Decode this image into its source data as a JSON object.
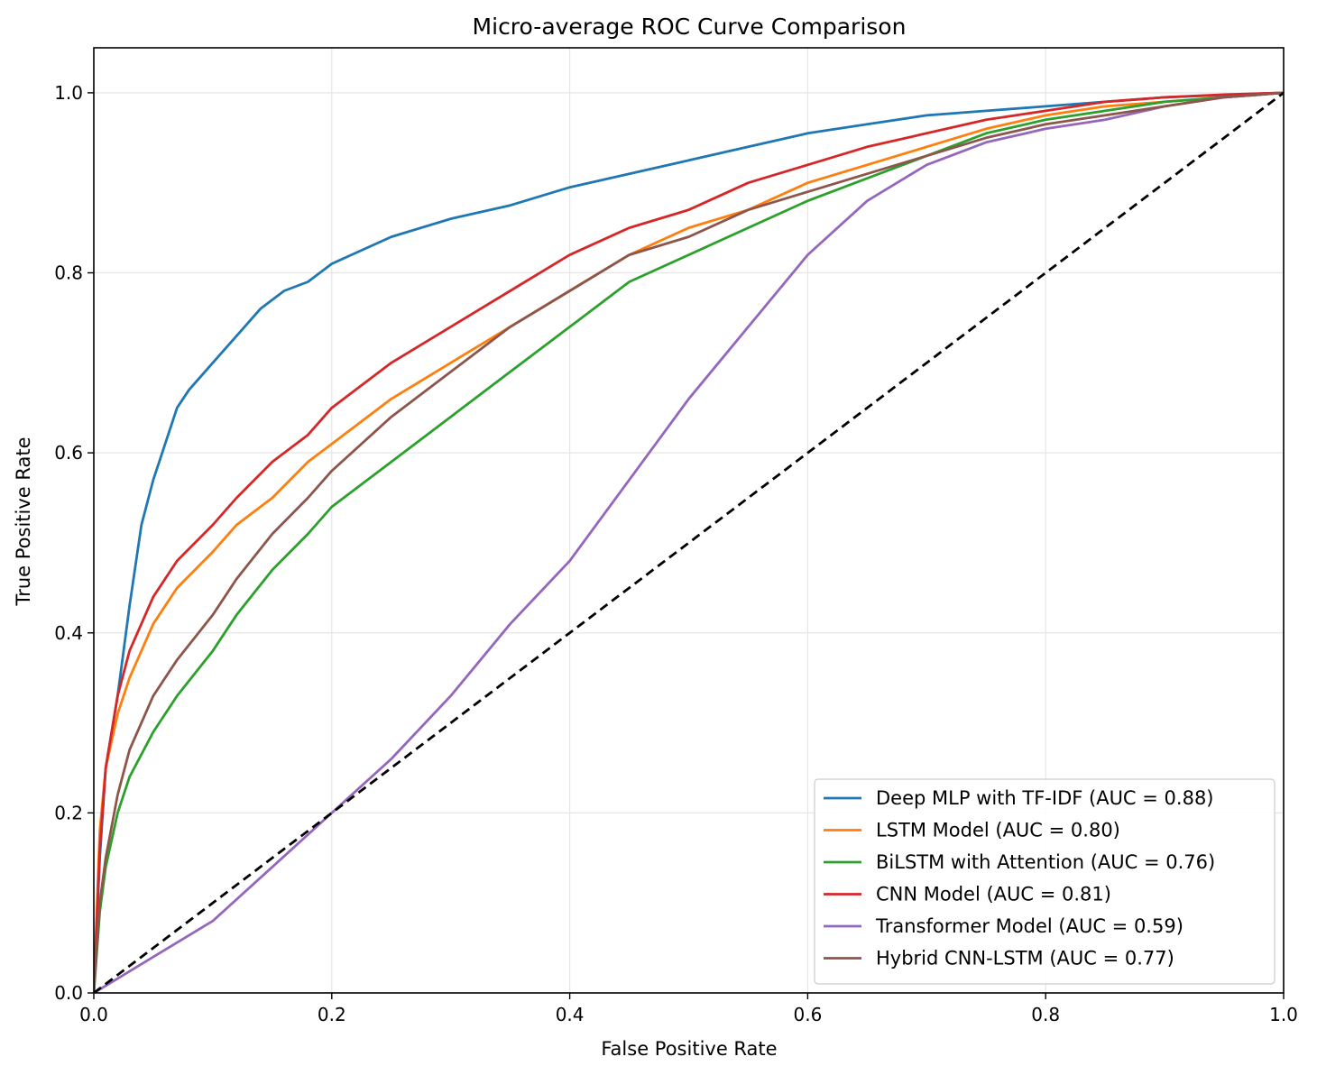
{
  "chart_data": {
    "type": "line",
    "title": "Micro-average ROC Curve Comparison",
    "xlabel": "False Positive Rate",
    "ylabel": "True Positive Rate",
    "xlim": [
      0.0,
      1.0
    ],
    "ylim": [
      0.0,
      1.05
    ],
    "xticks": [
      "0.0",
      "0.2",
      "0.4",
      "0.6",
      "0.8",
      "1.0"
    ],
    "yticks": [
      "0.0",
      "0.2",
      "0.4",
      "0.6",
      "0.8",
      "1.0"
    ],
    "grid": true,
    "legend_position": "lower-right",
    "reference_line": {
      "style": "dashed",
      "color": "#000000",
      "x": [
        0,
        1
      ],
      "y": [
        0,
        1
      ]
    },
    "series": [
      {
        "name": "Deep MLP with TF-IDF (AUC = 0.88)",
        "color": "#1f77b4",
        "x": [
          0,
          0.005,
          0.01,
          0.02,
          0.03,
          0.04,
          0.05,
          0.06,
          0.07,
          0.08,
          0.1,
          0.12,
          0.14,
          0.16,
          0.18,
          0.2,
          0.25,
          0.3,
          0.35,
          0.4,
          0.45,
          0.5,
          0.55,
          0.6,
          0.65,
          0.7,
          0.75,
          0.8,
          0.9,
          1.0
        ],
        "y": [
          0,
          0.15,
          0.25,
          0.33,
          0.43,
          0.52,
          0.57,
          0.61,
          0.65,
          0.67,
          0.7,
          0.73,
          0.76,
          0.78,
          0.79,
          0.81,
          0.84,
          0.86,
          0.875,
          0.895,
          0.91,
          0.925,
          0.94,
          0.955,
          0.965,
          0.975,
          0.98,
          0.985,
          0.995,
          1.0
        ]
      },
      {
        "name": "LSTM Model (AUC = 0.80)",
        "color": "#ff7f0e",
        "x": [
          0,
          0.005,
          0.01,
          0.02,
          0.03,
          0.05,
          0.07,
          0.1,
          0.12,
          0.15,
          0.18,
          0.2,
          0.25,
          0.3,
          0.35,
          0.4,
          0.45,
          0.5,
          0.55,
          0.6,
          0.65,
          0.7,
          0.75,
          0.8,
          0.85,
          0.9,
          0.95,
          1.0
        ],
        "y": [
          0,
          0.18,
          0.25,
          0.31,
          0.35,
          0.41,
          0.45,
          0.49,
          0.52,
          0.55,
          0.59,
          0.61,
          0.66,
          0.7,
          0.74,
          0.78,
          0.82,
          0.85,
          0.87,
          0.9,
          0.92,
          0.94,
          0.96,
          0.975,
          0.985,
          0.99,
          0.995,
          1.0
        ]
      },
      {
        "name": "BiLSTM with Attention (AUC = 0.76)",
        "color": "#2ca02c",
        "x": [
          0,
          0.005,
          0.01,
          0.02,
          0.03,
          0.05,
          0.07,
          0.1,
          0.12,
          0.15,
          0.18,
          0.2,
          0.25,
          0.3,
          0.35,
          0.4,
          0.45,
          0.5,
          0.55,
          0.6,
          0.65,
          0.7,
          0.75,
          0.8,
          0.85,
          0.9,
          0.95,
          1.0
        ],
        "y": [
          0,
          0.09,
          0.14,
          0.2,
          0.24,
          0.29,
          0.33,
          0.38,
          0.42,
          0.47,
          0.51,
          0.54,
          0.59,
          0.64,
          0.69,
          0.74,
          0.79,
          0.82,
          0.85,
          0.88,
          0.905,
          0.93,
          0.955,
          0.97,
          0.98,
          0.99,
          0.995,
          1.0
        ]
      },
      {
        "name": "CNN Model (AUC = 0.81)",
        "color": "#d62728",
        "x": [
          0,
          0.005,
          0.01,
          0.02,
          0.03,
          0.05,
          0.07,
          0.1,
          0.12,
          0.15,
          0.18,
          0.2,
          0.25,
          0.3,
          0.35,
          0.4,
          0.45,
          0.5,
          0.55,
          0.6,
          0.65,
          0.7,
          0.75,
          0.8,
          0.85,
          0.9,
          0.95,
          1.0
        ],
        "y": [
          0,
          0.16,
          0.25,
          0.33,
          0.38,
          0.44,
          0.48,
          0.52,
          0.55,
          0.59,
          0.62,
          0.65,
          0.7,
          0.74,
          0.78,
          0.82,
          0.85,
          0.87,
          0.9,
          0.92,
          0.94,
          0.955,
          0.97,
          0.98,
          0.99,
          0.995,
          0.998,
          1.0
        ]
      },
      {
        "name": "Transformer Model (AUC = 0.59)",
        "color": "#9467bd",
        "x": [
          0,
          0.05,
          0.1,
          0.15,
          0.2,
          0.25,
          0.3,
          0.35,
          0.4,
          0.45,
          0.5,
          0.55,
          0.6,
          0.65,
          0.7,
          0.75,
          0.8,
          0.85,
          0.9,
          0.95,
          1.0
        ],
        "y": [
          0,
          0.04,
          0.08,
          0.14,
          0.2,
          0.26,
          0.33,
          0.41,
          0.48,
          0.57,
          0.66,
          0.74,
          0.82,
          0.88,
          0.92,
          0.945,
          0.96,
          0.97,
          0.985,
          0.995,
          1.0
        ]
      },
      {
        "name": "Hybrid CNN-LSTM (AUC = 0.77)",
        "color": "#8c564b",
        "x": [
          0,
          0.005,
          0.01,
          0.02,
          0.03,
          0.05,
          0.07,
          0.1,
          0.12,
          0.15,
          0.18,
          0.2,
          0.25,
          0.3,
          0.35,
          0.4,
          0.45,
          0.5,
          0.55,
          0.6,
          0.65,
          0.7,
          0.75,
          0.8,
          0.85,
          0.9,
          0.95,
          1.0
        ],
        "y": [
          0,
          0.1,
          0.15,
          0.22,
          0.27,
          0.33,
          0.37,
          0.42,
          0.46,
          0.51,
          0.55,
          0.58,
          0.64,
          0.69,
          0.74,
          0.78,
          0.82,
          0.84,
          0.87,
          0.89,
          0.91,
          0.93,
          0.95,
          0.965,
          0.975,
          0.985,
          0.995,
          1.0
        ]
      }
    ]
  }
}
